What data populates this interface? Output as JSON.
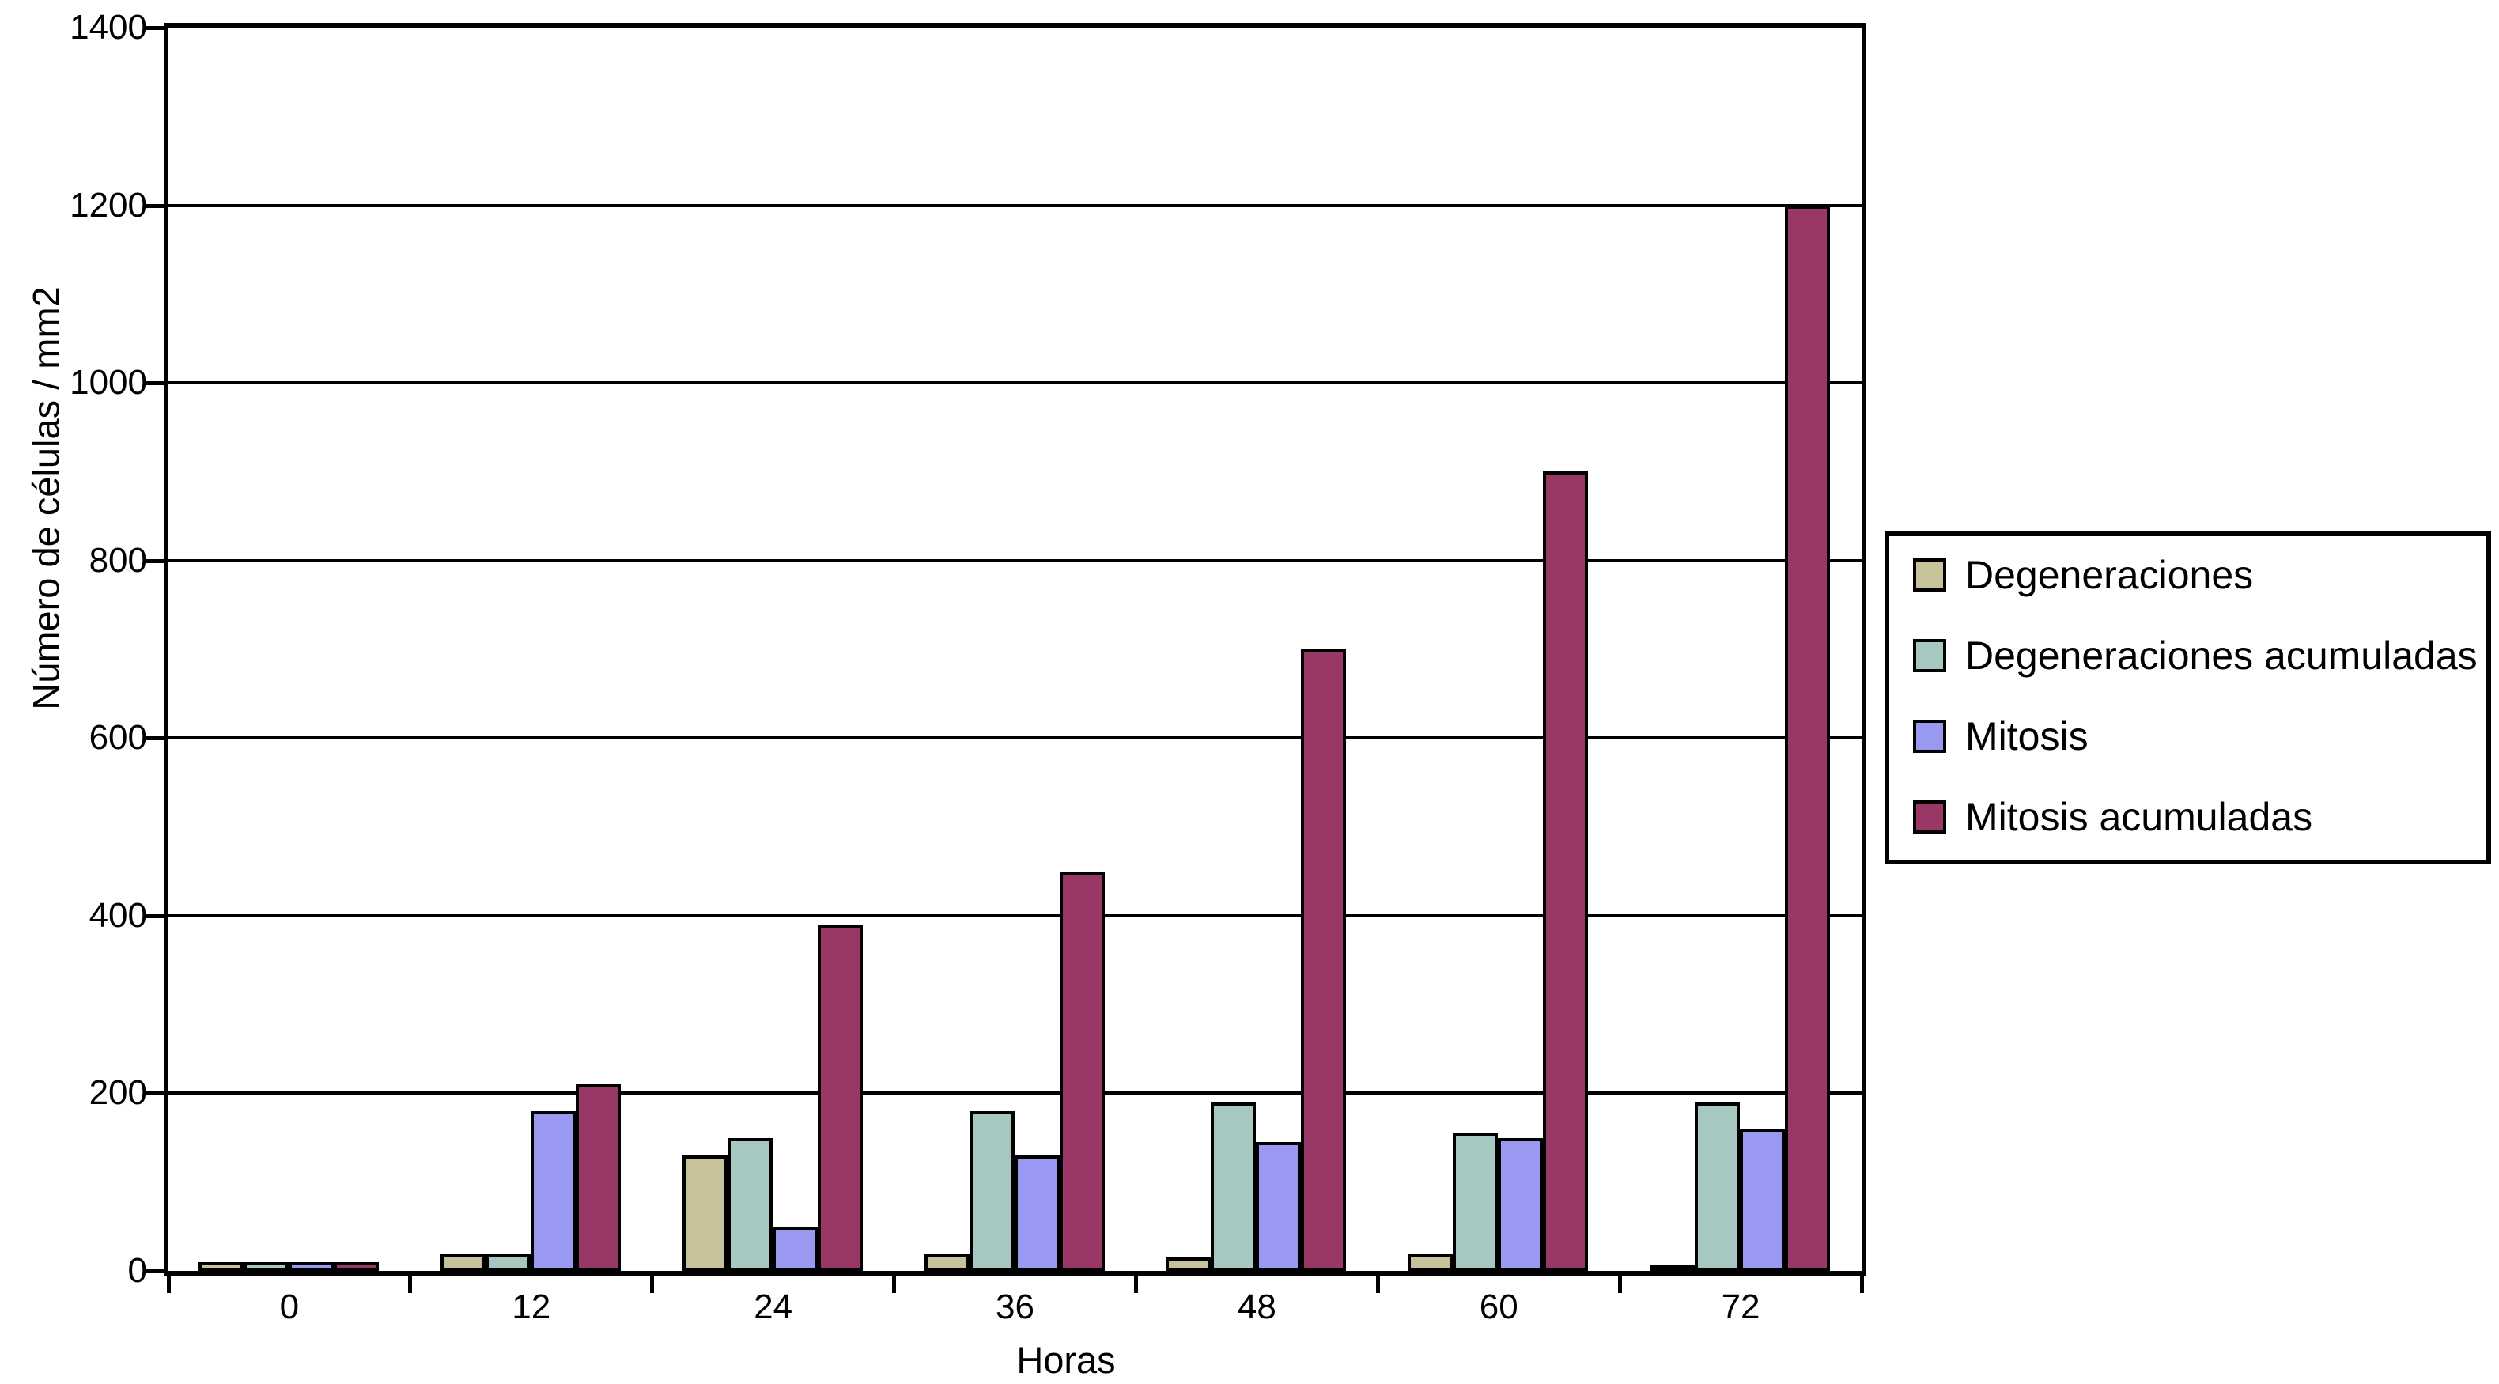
{
  "chart_data": {
    "type": "bar",
    "title": "",
    "xlabel": "Horas",
    "ylabel": "Número de células / mm2",
    "ylim": [
      0,
      1400
    ],
    "ytick_step": 200,
    "ytick_labels": [
      "0",
      "200",
      "400",
      "600",
      "800",
      "1000",
      "1200",
      "1400"
    ],
    "categories": [
      "0",
      "12",
      "24",
      "36",
      "48",
      "60",
      "72"
    ],
    "series": [
      {
        "name": "Degeneraciones",
        "color": "#C7C299",
        "values": [
          10,
          20,
          130,
          20,
          15,
          20,
          5
        ]
      },
      {
        "name": "Degeneraciones acumuladas",
        "color": "#A6C8C0",
        "values": [
          10,
          20,
          150,
          180,
          190,
          155,
          190
        ]
      },
      {
        "name": "Mitosis",
        "color": "#9A99F2",
        "values": [
          10,
          180,
          50,
          130,
          145,
          150,
          160
        ]
      },
      {
        "name": "Mitosis acumuladas",
        "color": "#993866",
        "values": [
          10,
          210,
          390,
          450,
          700,
          900,
          1200
        ]
      }
    ],
    "grid": "horizontal",
    "legend_position": "right",
    "axis_color": "#000000",
    "background": "#FFFFFF"
  }
}
